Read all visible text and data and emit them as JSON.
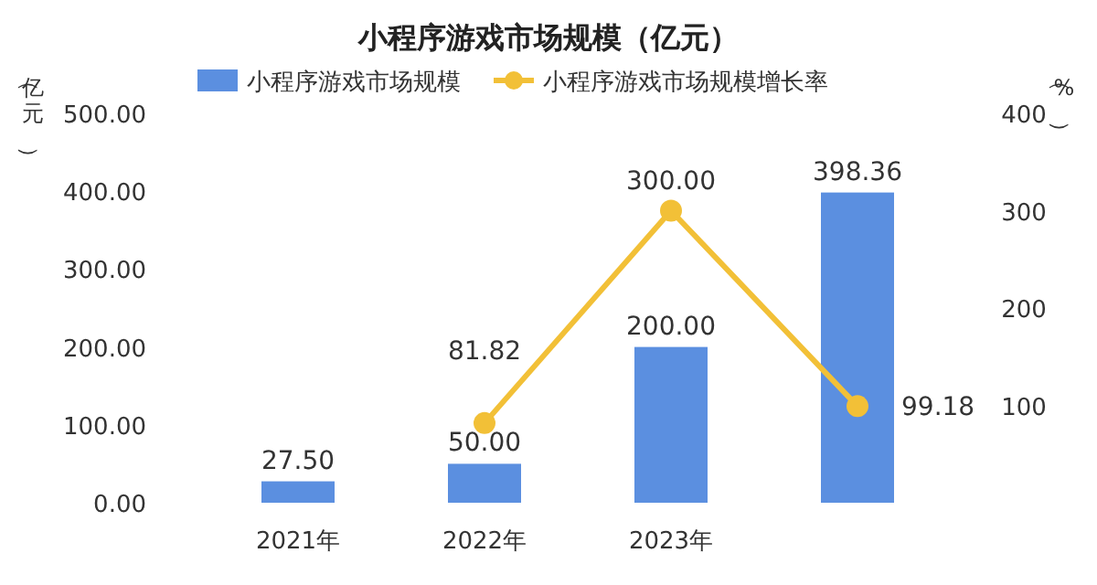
{
  "chart_data": {
    "type": "bar",
    "title": "小程序游戏市场规模（亿元）",
    "ylabel": "（亿元）",
    "y2label": "（%）",
    "categories": [
      "2021年",
      "2022年",
      "2023年",
      null
    ],
    "series": [
      {
        "name": "小程序游戏市场规模",
        "color": "#5b8fe0",
        "values": [
          27.5,
          50,
          200,
          398.36
        ],
        "value_labels": [
          "27.50",
          "50.00",
          "200.00",
          "398.36"
        ]
      },
      {
        "name": "小程序游戏市场规模增长率",
        "type": "line",
        "axis": "y2",
        "color": "#f2c037",
        "values": [
          null,
          81.82,
          300,
          99.18
        ],
        "value_labels": [
          null,
          "81.82",
          "300.00",
          "99.18"
        ],
        "marker": "circle"
      }
    ],
    "ylim": [
      0,
      500
    ],
    "yticks": [
      {
        "value": 0,
        "label": "0.00"
      },
      {
        "value": 100,
        "label": "100.00"
      },
      {
        "value": 200,
        "label": "200.00"
      },
      {
        "value": 300,
        "label": "300.00"
      },
      {
        "value": 400,
        "label": "400.00"
      },
      {
        "value": 500,
        "label": "500.00"
      }
    ],
    "y2lim": [
      0,
      400
    ],
    "y2ticks": [
      100,
      200,
      300,
      400
    ],
    "legend": "top"
  }
}
